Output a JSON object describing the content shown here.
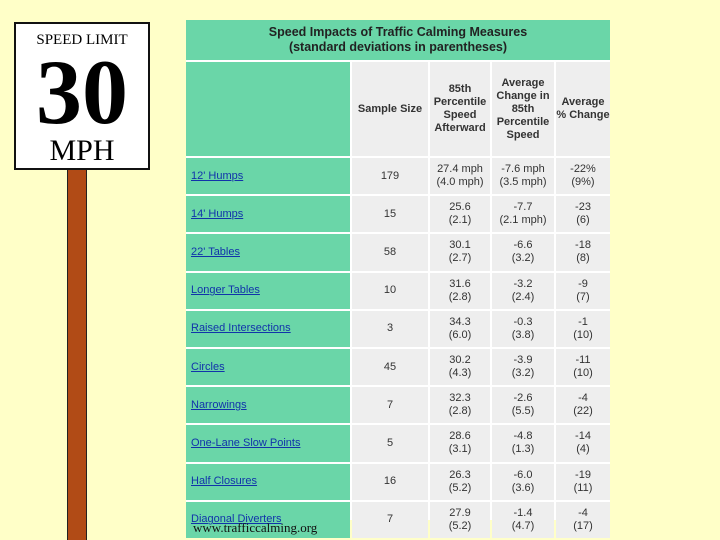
{
  "sign": {
    "top": "SPEED LIMIT",
    "number": "30",
    "bottom": "MPH"
  },
  "table": {
    "title_line1": "Speed Impacts of Traffic Calming Measures",
    "title_line2": "(standard deviations in parentheses)",
    "headers": {
      "sample_size": "Sample Size",
      "percentile": "85th Percentile Speed Afterward",
      "avg_change": "Average Change in 85th Percentile Speed",
      "pct_change": "Average % Change"
    },
    "rows": [
      {
        "measure": "12' Humps",
        "sample": "179",
        "speed": "27.4 mph",
        "speed_sd": "(4.0 mph)",
        "change": "-7.6 mph",
        "change_sd": "(3.5 mph)",
        "pct": "-22%",
        "pct_sd": "(9%)"
      },
      {
        "measure": "14' Humps",
        "sample": "15",
        "speed": "25.6",
        "speed_sd": "(2.1)",
        "change": "-7.7",
        "change_sd": "(2.1 mph)",
        "pct": "-23",
        "pct_sd": "(6)"
      },
      {
        "measure": "22' Tables",
        "sample": "58",
        "speed": "30.1",
        "speed_sd": "(2.7)",
        "change": "-6.6",
        "change_sd": "(3.2)",
        "pct": "-18",
        "pct_sd": "(8)"
      },
      {
        "measure": "Longer Tables",
        "sample": "10",
        "speed": "31.6",
        "speed_sd": "(2.8)",
        "change": "-3.2",
        "change_sd": "(2.4)",
        "pct": "-9",
        "pct_sd": "(7)"
      },
      {
        "measure": "Raised Intersections",
        "sample": "3",
        "speed": "34.3",
        "speed_sd": "(6.0)",
        "change": "-0.3",
        "change_sd": "(3.8)",
        "pct": "-1",
        "pct_sd": "(10)"
      },
      {
        "measure": "Circles",
        "sample": "45",
        "speed": "30.2",
        "speed_sd": "(4.3)",
        "change": "-3.9",
        "change_sd": "(3.2)",
        "pct": "-11",
        "pct_sd": "(10)"
      },
      {
        "measure": "Narrowings",
        "sample": "7",
        "speed": "32.3",
        "speed_sd": "(2.8)",
        "change": "-2.6",
        "change_sd": "(5.5)",
        "pct": "-4",
        "pct_sd": "(22)"
      },
      {
        "measure": "One-Lane Slow Points",
        "sample": "5",
        "speed": "28.6",
        "speed_sd": "(3.1)",
        "change": "-4.8",
        "change_sd": "(1.3)",
        "pct": "-14",
        "pct_sd": "(4)"
      },
      {
        "measure": "Half Closures",
        "sample": "16",
        "speed": "26.3",
        "speed_sd": "(5.2)",
        "change": "-6.0",
        "change_sd": "(3.6)",
        "pct": "-19",
        "pct_sd": "(11)"
      },
      {
        "measure": "Diagonal Diverters",
        "sample": "7",
        "speed": "27.9",
        "speed_sd": "(5.2)",
        "change": "-1.4",
        "change_sd": "(4.7)",
        "pct": "-4",
        "pct_sd": "(17)"
      }
    ]
  },
  "footer": "www.trafficcalming.org"
}
